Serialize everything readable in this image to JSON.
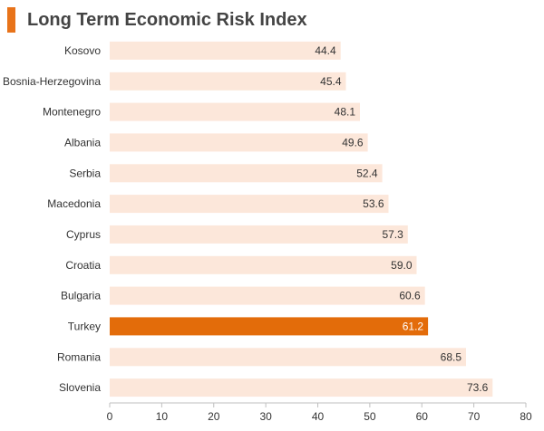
{
  "title": "Long Term Economic Risk Index",
  "colors": {
    "accent": "#E8731A",
    "bar": "#FCE7DA",
    "highlight": "#E36C0A",
    "axis": "#BFBFBF",
    "text": "#333333",
    "highlight_text": "#FFFFFF"
  },
  "chart_data": {
    "type": "bar",
    "orientation": "horizontal",
    "title": "Long Term Economic Risk Index",
    "categories": [
      "Kosovo",
      "Bosnia-Herzegovina",
      "Montenegro",
      "Albania",
      "Serbia",
      "Macedonia",
      "Cyprus",
      "Croatia",
      "Bulgaria",
      "Turkey",
      "Romania",
      "Slovenia"
    ],
    "values": [
      44.4,
      45.4,
      48.1,
      49.6,
      52.4,
      53.6,
      57.3,
      59.0,
      60.6,
      61.2,
      68.5,
      73.6
    ],
    "value_labels": [
      "44.4",
      "45.4",
      "48.1",
      "49.6",
      "52.4",
      "53.6",
      "57.3",
      "59.0",
      "60.6",
      "61.2",
      "68.5",
      "73.6"
    ],
    "highlight": "Turkey",
    "xlim": [
      0,
      80
    ],
    "xticks": [
      0,
      10,
      20,
      30,
      40,
      50,
      60,
      70,
      80
    ],
    "xlabel": "",
    "ylabel": "",
    "grid": false,
    "legend": "none"
  }
}
